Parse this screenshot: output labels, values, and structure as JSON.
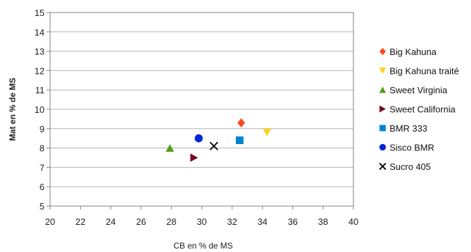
{
  "chart_data": {
    "type": "scatter",
    "xlabel": "CB en % de MS",
    "ylabel": "Mat en % de MS",
    "xlim": [
      20,
      40
    ],
    "ylim": [
      5,
      15
    ],
    "xticks": [
      20,
      22,
      24,
      26,
      28,
      30,
      32,
      34,
      36,
      38,
      40
    ],
    "yticks": [
      5,
      6,
      7,
      8,
      9,
      10,
      11,
      12,
      13,
      14,
      15
    ],
    "grid": true,
    "legend_position": "right",
    "series": [
      {
        "name": "Big Kahuna",
        "marker": "diamond",
        "color": "#ff4a1c",
        "points": [
          {
            "x": 32.6,
            "y": 9.3
          }
        ]
      },
      {
        "name": "Big Kahuna traité",
        "marker": "triangle-down",
        "color": "#ffd320",
        "points": [
          {
            "x": 34.3,
            "y": 8.8
          }
        ]
      },
      {
        "name": "Sweet Virginia",
        "marker": "triangle-up",
        "color": "#579d1c",
        "points": [
          {
            "x": 27.9,
            "y": 8.0
          }
        ]
      },
      {
        "name": "Sweet California",
        "marker": "triangle-right",
        "color": "#7e0021",
        "points": [
          {
            "x": 29.5,
            "y": 7.5
          }
        ]
      },
      {
        "name": "BMR 333",
        "marker": "square",
        "color": "#0084d1",
        "points": [
          {
            "x": 32.5,
            "y": 8.4
          }
        ]
      },
      {
        "name": "Sisco BMR",
        "marker": "circle",
        "color": "#0026d9",
        "points": [
          {
            "x": 29.8,
            "y": 8.5
          }
        ]
      },
      {
        "name": "Sucro 405",
        "marker": "x",
        "color": "#111111",
        "points": [
          {
            "x": 30.8,
            "y": 8.1
          }
        ]
      }
    ]
  }
}
